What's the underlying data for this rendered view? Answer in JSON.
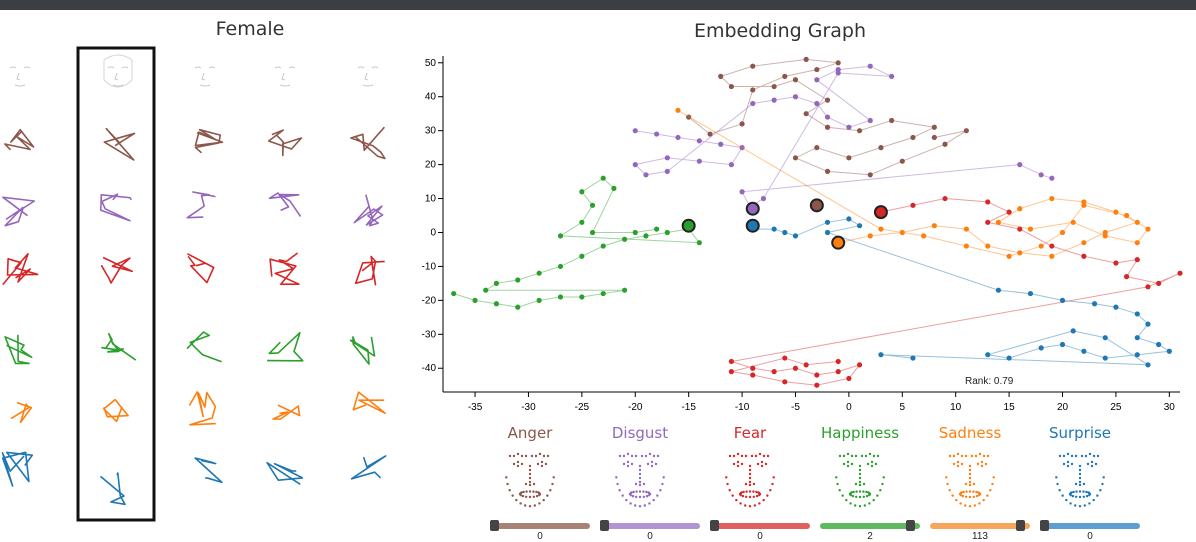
{
  "left_panel": {
    "title": "Female"
  },
  "graph": {
    "title": "Embedding Graph",
    "rank_text": "Rank: 0.79",
    "x_ticks": [
      "-35",
      "-30",
      "-25",
      "-20",
      "-15",
      "-10",
      "-5",
      "0",
      "5",
      "10",
      "15",
      "20",
      "25",
      "30"
    ],
    "y_ticks": [
      "50",
      "40",
      "30",
      "20",
      "10",
      "0",
      "-10",
      "-20",
      "-30",
      "-40"
    ]
  },
  "emotions": [
    {
      "label": "Anger",
      "color": "#8c564b",
      "track": "#a98276",
      "value": "0",
      "handle": 0.0
    },
    {
      "label": "Disgust",
      "color": "#9467bd",
      "track": "#b195d2",
      "value": "0",
      "handle": 0.0
    },
    {
      "label": "Fear",
      "color": "#d62728",
      "track": "#e06061",
      "value": "0",
      "handle": 0.0
    },
    {
      "label": "Happiness",
      "color": "#2ca02c",
      "track": "#5fba5f",
      "value": "2",
      "handle": 0.95
    },
    {
      "label": "Sadness",
      "color": "#ff7f0e",
      "track": "#f9a65a",
      "value": "113",
      "handle": 0.95
    },
    {
      "label": "Surprise",
      "color": "#1f77b4",
      "track": "#5f9fcf",
      "value": "0",
      "handle": 0.0
    }
  ],
  "colors": {
    "anger": "#8c564b",
    "disgust": "#9467bd",
    "fear": "#d62728",
    "happiness": "#2ca02c",
    "sadness": "#ff7f0e",
    "surprise": "#1f77b4"
  },
  "chart_data": {
    "type": "scatter",
    "title": "Embedding Graph",
    "xlim": [
      -38,
      31
    ],
    "ylim": [
      -47,
      52
    ],
    "series": [
      {
        "name": "Anger",
        "color": "#8c564b",
        "points": [
          [
            -15,
            34
          ],
          [
            -13,
            29
          ],
          [
            -10,
            32
          ],
          [
            -9,
            42
          ],
          [
            -6,
            46
          ],
          [
            -3,
            48
          ],
          [
            -1,
            50
          ],
          [
            -4,
            51
          ],
          [
            -9,
            49
          ],
          [
            -12,
            46
          ],
          [
            -11,
            43
          ],
          [
            -7,
            43
          ],
          [
            -5,
            45
          ],
          [
            -2,
            39
          ],
          [
            -4,
            35
          ],
          [
            -2,
            31
          ],
          [
            1,
            30
          ],
          [
            4,
            33
          ],
          [
            8,
            31
          ],
          [
            6,
            28
          ],
          [
            3,
            25
          ],
          [
            0,
            22
          ],
          [
            -3,
            25
          ],
          [
            -5,
            22
          ],
          [
            -2,
            18
          ],
          [
            2,
            17
          ],
          [
            5,
            21
          ],
          [
            9,
            26
          ],
          [
            11,
            30
          ],
          [
            8,
            28
          ]
        ]
      },
      {
        "name": "Disgust",
        "color": "#9467bd",
        "points": [
          [
            -20,
            30
          ],
          [
            -18,
            29
          ],
          [
            -16,
            28
          ],
          [
            -14,
            27
          ],
          [
            -12,
            26
          ],
          [
            -10,
            25
          ],
          [
            -11,
            20
          ],
          [
            -14,
            21
          ],
          [
            -17,
            22
          ],
          [
            -20,
            20
          ],
          [
            -19,
            17
          ],
          [
            -17,
            18
          ],
          [
            -9,
            38
          ],
          [
            -7,
            39
          ],
          [
            -5,
            40
          ],
          [
            -3,
            38
          ],
          [
            -2,
            34
          ],
          [
            0,
            31
          ],
          [
            2,
            33
          ],
          [
            -3,
            45
          ],
          [
            -1,
            48
          ],
          [
            2,
            49
          ],
          [
            4,
            46
          ],
          [
            -1,
            47
          ],
          [
            -8,
            10
          ],
          [
            -9,
            8
          ],
          [
            -9,
            6
          ],
          [
            -10,
            12
          ],
          [
            16,
            20
          ],
          [
            18,
            17
          ],
          [
            19,
            16
          ]
        ]
      },
      {
        "name": "Fear",
        "color": "#d62728",
        "points": [
          [
            3,
            6
          ],
          [
            6,
            8
          ],
          [
            9,
            10
          ],
          [
            13,
            9
          ],
          [
            15,
            6
          ],
          [
            13,
            3
          ],
          [
            16,
            1
          ],
          [
            19,
            -4
          ],
          [
            22,
            -7
          ],
          [
            25,
            -9
          ],
          [
            27,
            -8
          ],
          [
            26,
            -13
          ],
          [
            29,
            -15
          ],
          [
            31,
            -12
          ],
          [
            28,
            -16
          ],
          [
            -11,
            -38
          ],
          [
            -9,
            -40
          ],
          [
            -7,
            -41
          ],
          [
            -5,
            -40
          ],
          [
            -3,
            -42
          ],
          [
            -1,
            -41
          ],
          [
            1,
            -39
          ],
          [
            0,
            -43
          ],
          [
            -3,
            -45
          ],
          [
            -6,
            -44
          ],
          [
            -9,
            -42
          ],
          [
            -11,
            -41
          ],
          [
            -6,
            -37
          ],
          [
            -4,
            -39
          ],
          [
            -1,
            -38
          ]
        ]
      },
      {
        "name": "Happiness",
        "color": "#2ca02c",
        "points": [
          [
            -37,
            -18
          ],
          [
            -35,
            -20
          ],
          [
            -33,
            -21
          ],
          [
            -31,
            -22
          ],
          [
            -29,
            -20
          ],
          [
            -27,
            -19
          ],
          [
            -25,
            -19
          ],
          [
            -23,
            -18
          ],
          [
            -21,
            -17
          ],
          [
            -34,
            -17
          ],
          [
            -33,
            -15
          ],
          [
            -31,
            -14
          ],
          [
            -29,
            -12
          ],
          [
            -27,
            -10
          ],
          [
            -25,
            -7
          ],
          [
            -23,
            -4
          ],
          [
            -21,
            -2
          ],
          [
            -19,
            -1
          ],
          [
            -17,
            0
          ],
          [
            -15,
            1
          ],
          [
            -14,
            -3
          ],
          [
            -27,
            -1
          ],
          [
            -25,
            3
          ],
          [
            -24,
            8
          ],
          [
            -25,
            12
          ],
          [
            -23,
            16
          ],
          [
            -22,
            13
          ],
          [
            -24,
            0
          ],
          [
            -20,
            0
          ],
          [
            -18,
            1
          ]
        ]
      },
      {
        "name": "Sadness",
        "color": "#ff7f0e",
        "points": [
          [
            -1,
            -3
          ],
          [
            2,
            -1
          ],
          [
            5,
            0
          ],
          [
            8,
            2
          ],
          [
            11,
            1
          ],
          [
            13,
            -4
          ],
          [
            16,
            -6
          ],
          [
            19,
            -7
          ],
          [
            22,
            -3
          ],
          [
            24,
            0
          ],
          [
            27,
            3
          ],
          [
            25,
            6
          ],
          [
            22,
            9
          ],
          [
            19,
            10
          ],
          [
            16,
            7
          ],
          [
            14,
            3
          ],
          [
            17,
            1
          ],
          [
            21,
            3
          ],
          [
            24,
            -1
          ],
          [
            27,
            -3
          ],
          [
            28,
            1
          ],
          [
            26,
            5
          ],
          [
            22,
            8
          ],
          [
            20,
            0
          ],
          [
            18,
            -4
          ],
          [
            15,
            -7
          ],
          [
            11,
            -4
          ],
          [
            7,
            -1
          ],
          [
            3,
            1
          ],
          [
            -16,
            36
          ]
        ]
      },
      {
        "name": "Surprise",
        "color": "#1f77b4",
        "points": [
          [
            -9,
            1
          ],
          [
            -7,
            1
          ],
          [
            -6,
            0
          ],
          [
            -5,
            -1
          ],
          [
            -2,
            3
          ],
          [
            0,
            4
          ],
          [
            1,
            2
          ],
          [
            -2,
            0
          ],
          [
            14,
            -17
          ],
          [
            17,
            -18
          ],
          [
            20,
            -20
          ],
          [
            23,
            -21
          ],
          [
            25,
            -22
          ],
          [
            27,
            -24
          ],
          [
            28,
            -27
          ],
          [
            27,
            -31
          ],
          [
            29,
            -33
          ],
          [
            30,
            -35
          ],
          [
            27,
            -36
          ],
          [
            24,
            -37
          ],
          [
            22,
            -35
          ],
          [
            20,
            -33
          ],
          [
            18,
            -34
          ],
          [
            15,
            -37
          ],
          [
            13,
            -36
          ],
          [
            21,
            -29
          ],
          [
            24,
            -31
          ],
          [
            28,
            -39
          ],
          [
            3,
            -36
          ],
          [
            6,
            -37
          ]
        ]
      }
    ],
    "highlighted": [
      {
        "name": "Happiness",
        "x": -15,
        "y": 2,
        "color": "#2ca02c"
      },
      {
        "name": "Disgust",
        "x": -9,
        "y": 7,
        "color": "#9467bd"
      },
      {
        "name": "Surprise",
        "x": -9,
        "y": 2,
        "color": "#1f77b4"
      },
      {
        "name": "Anger",
        "x": -3,
        "y": 8,
        "color": "#8c564b"
      },
      {
        "name": "Sadness",
        "x": -1,
        "y": -3,
        "color": "#ff7f0e"
      },
      {
        "name": "Fear",
        "x": 3,
        "y": 6,
        "color": "#d62728"
      }
    ]
  }
}
